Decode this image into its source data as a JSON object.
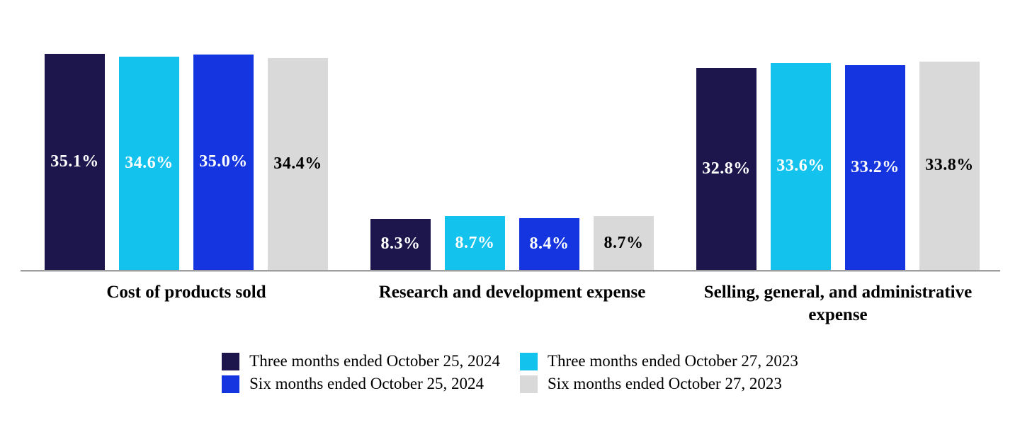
{
  "chart_data": {
    "type": "bar",
    "title": "",
    "categories": [
      "Cost of products sold",
      "Research and development expense",
      "Selling, general, and administrative expense"
    ],
    "series": [
      {
        "name": "Three months ended October 25, 2024",
        "color": "#1C164C",
        "label_color": "#FFFFFF",
        "values": [
          35.1,
          8.3,
          32.8
        ],
        "labels": [
          "35.1%",
          "8.3%",
          "32.8%"
        ]
      },
      {
        "name": "Three months ended October 27, 2023",
        "color": "#13C3EE",
        "label_color": "#FFFFFF",
        "values": [
          34.6,
          8.7,
          33.6
        ],
        "labels": [
          "34.6%",
          "8.7%",
          "33.6%"
        ]
      },
      {
        "name": "Six months ended October 25, 2024",
        "color": "#1535E0",
        "label_color": "#FFFFFF",
        "values": [
          35.0,
          8.4,
          33.2
        ],
        "labels": [
          "35.0%",
          "8.4%",
          "33.2%"
        ]
      },
      {
        "name": "Six months ended October 27, 2023",
        "color": "#D9D9D9",
        "label_color": "#000000",
        "values": [
          34.4,
          8.7,
          33.8
        ],
        "labels": [
          "34.4%",
          "8.7%",
          "33.8%"
        ]
      }
    ],
    "value_suffix": "%",
    "ylim": [
      0,
      36
    ],
    "grid": false,
    "legend_position": "bottom",
    "axis_line_color": "#9E9E9E"
  }
}
